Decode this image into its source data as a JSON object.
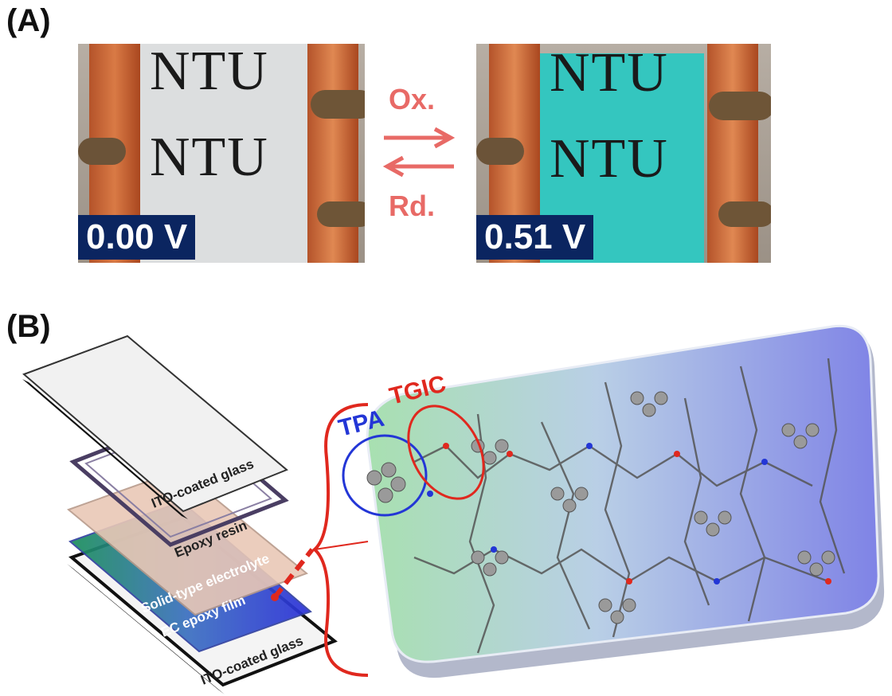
{
  "panel_a": {
    "label": "(A)",
    "left_photo": {
      "voltage": "0.00 V",
      "text": "NTU"
    },
    "right_photo": {
      "voltage": "0.51 V",
      "text": "NTU"
    },
    "oxidation_label": "Ox.",
    "reduction_label": "Rd.",
    "colors": {
      "bleached": "#d9dcdd",
      "colored": "#2fc4bd",
      "arrow": "#e86a66",
      "badge": "#0b2560",
      "copper": "#c8602f"
    }
  },
  "panel_b": {
    "label": "(B)",
    "layers": [
      {
        "name": "ITO-coated glass"
      },
      {
        "name": "Epoxy resin"
      },
      {
        "name": "Solid-type electrolyte"
      },
      {
        "name": "EC epoxy film"
      },
      {
        "name": "ITO-coated glass"
      }
    ],
    "molecule_labels": {
      "tpa": "TPA",
      "tgic": "TGIC"
    },
    "colors": {
      "tpa": "#2336d6",
      "tgic": "#e0281e",
      "bracket": "#e0281e"
    }
  }
}
